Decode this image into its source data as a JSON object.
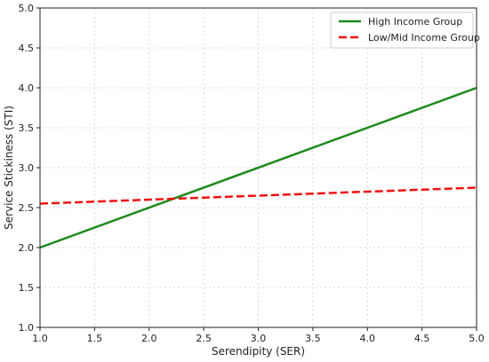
{
  "chart_data": {
    "type": "line",
    "title": "",
    "xlabel": "Serendipity (SER)",
    "ylabel": "Service Stickiness (STI)",
    "xlim": [
      1.0,
      5.0
    ],
    "ylim": [
      1.0,
      5.0
    ],
    "xticks": [
      "1.0",
      "1.5",
      "2.0",
      "2.5",
      "3.0",
      "3.5",
      "4.0",
      "4.5",
      "5.0"
    ],
    "yticks": [
      "1.0",
      "1.5",
      "2.0",
      "2.5",
      "3.0",
      "3.5",
      "4.0",
      "4.5",
      "5.0"
    ],
    "grid": true,
    "legend_position": "top-right",
    "series": [
      {
        "name": "High Income Group",
        "color": "#1e8a1e",
        "style": "solid",
        "x": [
          1.0,
          5.0
        ],
        "y": [
          2.0,
          4.0
        ]
      },
      {
        "name": "Low/Mid Income Group",
        "color": "#ee1111",
        "style": "dashed",
        "x": [
          1.0,
          5.0
        ],
        "y": [
          2.55,
          2.75
        ]
      }
    ]
  }
}
